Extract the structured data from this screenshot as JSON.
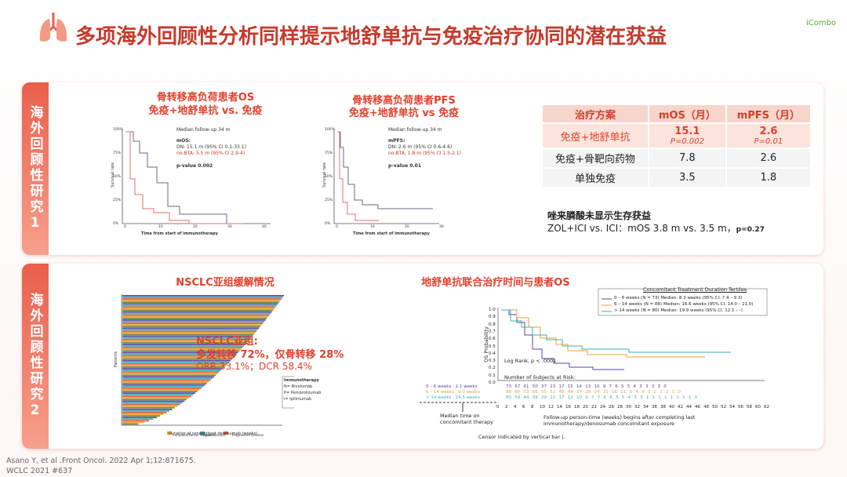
{
  "header": {
    "title": "多项海外回顾性分析同样提示地舒单抗与免疫治疗协同的潜在获益",
    "logo": "iCombo"
  },
  "section1": {
    "label": "海外回顾性研究1",
    "figures": [
      {
        "title": [
          "骨转移高负荷患者OS",
          "免疫+地舒单抗 vs. 免疫"
        ],
        "texts": [
          "Median follow-up 34 m",
          "mOS:",
          "DN: 15.1 m (95% CI 0.1-33.1)",
          "no-BTA: 3.5 m (95% CI 2.9-4)",
          "p-value 0.002"
        ],
        "ylabel": "Survival rate",
        "xlabel": "Time from start of immunotherapy",
        "yticks": [
          "100%",
          "75%",
          "50%",
          "25%",
          "0%"
        ],
        "xticks": [
          "0",
          "10",
          "20",
          "30",
          "40"
        ]
      },
      {
        "title": [
          "骨转移高负荷患者PFS",
          "免疫+地舒单抗 vs 免疫"
        ],
        "texts": [
          "Median follow-up 34 m",
          "mPFS:",
          "DN: 2.6 m (95% CI 0.6-4.6)",
          "no-BTA: 1.8 m (95% CI 1.5-2.1)",
          "p-value 0.01"
        ],
        "ylabel": "Survival rate",
        "xlabel": "Time from start of immunotherapy",
        "yticks": [
          "100%",
          "75%",
          "50%",
          "25%",
          "0%"
        ],
        "xticks": [
          "0",
          "10",
          "20",
          "30"
        ]
      }
    ],
    "table": {
      "header": [
        "治疗方案",
        "mOS（月）",
        "mPFS（月）"
      ],
      "rows": [
        {
          "regimen": "免疫+地舒单抗",
          "mos": "15.1",
          "mos_p": "P=0.002",
          "mpfs": "2.6",
          "mpfs_p": "P=0.01"
        },
        {
          "regimen": "免疫+骨靶向药物",
          "mos": "7.8",
          "mpfs": "2.6"
        },
        {
          "regimen": "单独免疫",
          "mos": "3.5",
          "mpfs": "1.8"
        }
      ]
    },
    "note": [
      "唑来膦酸未显示生存获益",
      "ZOL+ICI vs. ICI：mOS 3.8 m vs. 3.5 m，",
      "p=0.27"
    ]
  },
  "section2": {
    "label": "海外回顾性研究2",
    "waterfall": {
      "title": "NSCLC亚组缓解情况",
      "overlay": [
        "NSCLC亚组:",
        "多发转移 72%，仅骨转移 28%",
        "ORR 33.1%；DCR 58.4%"
      ],
      "ylabel": "Patients",
      "xlabel": "Duration of concomitant denosumab (weeks)",
      "legend": [
        "Complete/Partial Response",
        "Stable Disease",
        "Progressive Disease"
      ],
      "therapy_legend": [
        "Immunotherapy",
        "N= Nivolumab",
        "P= Pembrolizumab",
        "I= Ipilimumab"
      ]
    },
    "km": {
      "title": "地舒单抗联合治疗时间与患者OS",
      "legend_title": "Concomitant Treatment Duration Tertiles",
      "legend": [
        "0 – 6 weeks (N = 73)  Median: 8.3 weeks (95% CI: 7.4 – 9.3)",
        "6 – 14 weeks (N = 88)  Median: 16.6 weeks (95% CI: 14.0 – 21.0)",
        "> 14 weeks (N = 80)  Median: 19.9 weeks (95% CI: 12.1 – -)"
      ],
      "ylabel": "OS Probability",
      "yticks": [
        "1.0",
        "0.9",
        "0.8",
        "0.7",
        "0.6",
        "0.5",
        "0.4",
        "0.3",
        "0.2",
        "0.1",
        "0.0"
      ],
      "xticks": [
        "0",
        "2",
        "4",
        "6",
        "8",
        "10",
        "12",
        "14",
        "16",
        "18",
        "20",
        "22",
        "24",
        "26",
        "28",
        "30",
        "32",
        "34",
        "36",
        "38",
        "40",
        "42",
        "44",
        "46",
        "48",
        "50",
        "52",
        "54",
        "56",
        "58",
        "60",
        "62"
      ],
      "logrank": "Log Rank, p < .0001",
      "risk_title": "Number of Subjects at Risk:",
      "risk_labels": [
        "0 – 6 weeks : 2.1 weeks",
        "6 – 14 weeks : 9.0 weeks",
        "> 14 weeks : 24.5 weeks"
      ],
      "risk_rows": [
        "73 67 61 50 37 23 17 15 14 13 10 9 7 6 5 5 4 3 3 3 3 0",
        "88 80 73 66 55 51 46 44 37 28 24 21 16 11 5 4 4 3 2 2 2 1 0",
        "80 54 44 39 29 22 17 12 10 9 7 7 6 6 5 5 4 3 3 1 1 1 1 1 1 1 1 0"
      ],
      "median_note": [
        "Median time on",
        "concomitant therapy"
      ],
      "xlabel": [
        "Follow-up person-time (weeks) begins after completing last",
        "immunotherapy/denosumab concomitant exposure"
      ],
      "censor": "Censor indicated by vertical bar |."
    }
  },
  "footer": [
    "Asano Y, et al .Front Oncol. 2022 Apr 1;12:871675.",
    "WCLC 2021 #637"
  ]
}
